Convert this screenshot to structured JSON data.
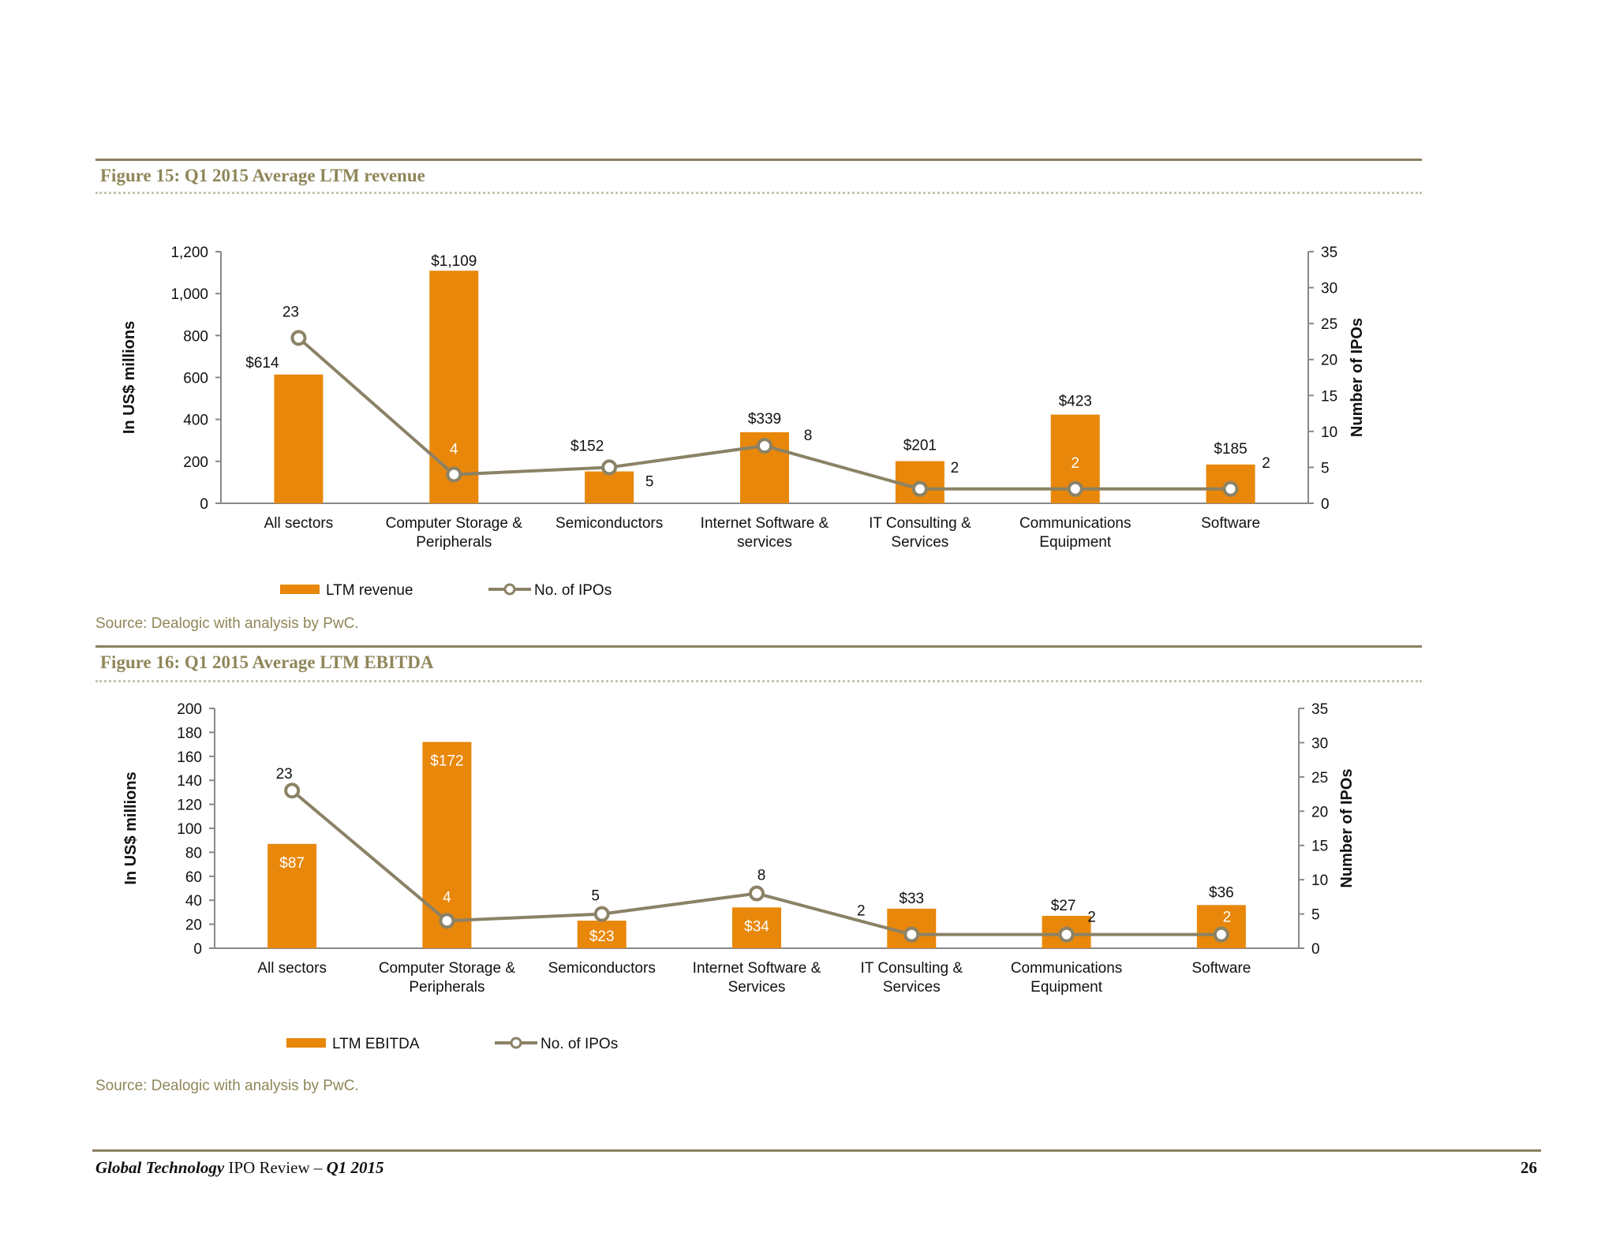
{
  "figure15": {
    "title": "Figure 15: Q1 2015 Average LTM revenue",
    "source": "Source: Dealogic with analysis by PwC."
  },
  "figure16": {
    "title": "Figure 16: Q1 2015 Average LTM EBITDA",
    "source": "Source: Dealogic with analysis by PwC."
  },
  "footer": {
    "title_italic": "Global Technology",
    "title_mid": " IPO Review – ",
    "title_quarter": "Q1 2015",
    "page_number": "26"
  },
  "colors": {
    "bar": "#e8870a",
    "line": "#8b8266",
    "rule": "#8a8060",
    "title": "#8f8659"
  },
  "chart_data": [
    {
      "type": "bar",
      "title": "Figure 15: Q1 2015 Average LTM revenue",
      "categories": [
        [
          "All sectors"
        ],
        [
          "Computer Storage &",
          "Peripherals"
        ],
        [
          "Semiconductors"
        ],
        [
          "Internet Software &",
          "services"
        ],
        [
          "IT Consulting &",
          "Services"
        ],
        [
          "Communications",
          "Equipment"
        ],
        [
          "Software"
        ]
      ],
      "series": [
        {
          "name": "LTM revenue",
          "kind": "bar",
          "axis": "left",
          "values": [
            614,
            1109,
            152,
            339,
            201,
            423,
            185
          ],
          "labels": [
            "$614",
            "$1,109",
            "$152",
            "$339",
            "$201",
            "$423",
            "$185"
          ]
        },
        {
          "name": "No. of IPOs",
          "kind": "line",
          "axis": "right",
          "values": [
            23,
            4,
            5,
            8,
            2,
            2,
            2
          ],
          "labels": [
            "23",
            "4",
            "5",
            "8",
            "2",
            "2",
            "2"
          ]
        }
      ],
      "ylabel": "In US$ millions",
      "y2label": "Number of IPOs",
      "ylim": [
        0,
        1200
      ],
      "yticks": [
        "0",
        "200",
        "400",
        "600",
        "800",
        "1,000",
        "1,200"
      ],
      "y2lim": [
        0,
        35
      ],
      "y2ticks": [
        "0",
        "5",
        "10",
        "15",
        "20",
        "25",
        "30",
        "35"
      ],
      "legend": "bottom"
    },
    {
      "type": "bar",
      "title": "Figure 16: Q1 2015 Average LTM EBITDA",
      "categories": [
        [
          "All sectors"
        ],
        [
          "Computer Storage &",
          "Peripherals"
        ],
        [
          "Semiconductors"
        ],
        [
          "Internet Software &",
          "Services"
        ],
        [
          "IT Consulting &",
          "Services"
        ],
        [
          "Communications",
          "Equipment"
        ],
        [
          "Software"
        ]
      ],
      "series": [
        {
          "name": "LTM EBITDA",
          "kind": "bar",
          "axis": "left",
          "values": [
            87,
            172,
            23,
            34,
            33,
            27,
            36
          ],
          "labels": [
            "$87",
            "$172",
            "$23",
            "$34",
            "$33",
            "$27",
            "$36"
          ]
        },
        {
          "name": "No. of IPOs",
          "kind": "line",
          "axis": "right",
          "values": [
            23,
            4,
            5,
            8,
            2,
            2,
            2
          ],
          "labels": [
            "23",
            "4",
            "5",
            "8",
            "2",
            "2",
            "2"
          ]
        }
      ],
      "ylabel": "In US$ millions",
      "y2label": "Number of IPOs",
      "ylim": [
        0,
        200
      ],
      "yticks": [
        "0",
        "20",
        "40",
        "60",
        "80",
        "100",
        "120",
        "140",
        "160",
        "180",
        "200"
      ],
      "y2lim": [
        0,
        35
      ],
      "y2ticks": [
        "0",
        "5",
        "10",
        "15",
        "20",
        "25",
        "30",
        "35"
      ],
      "legend": "bottom"
    }
  ]
}
